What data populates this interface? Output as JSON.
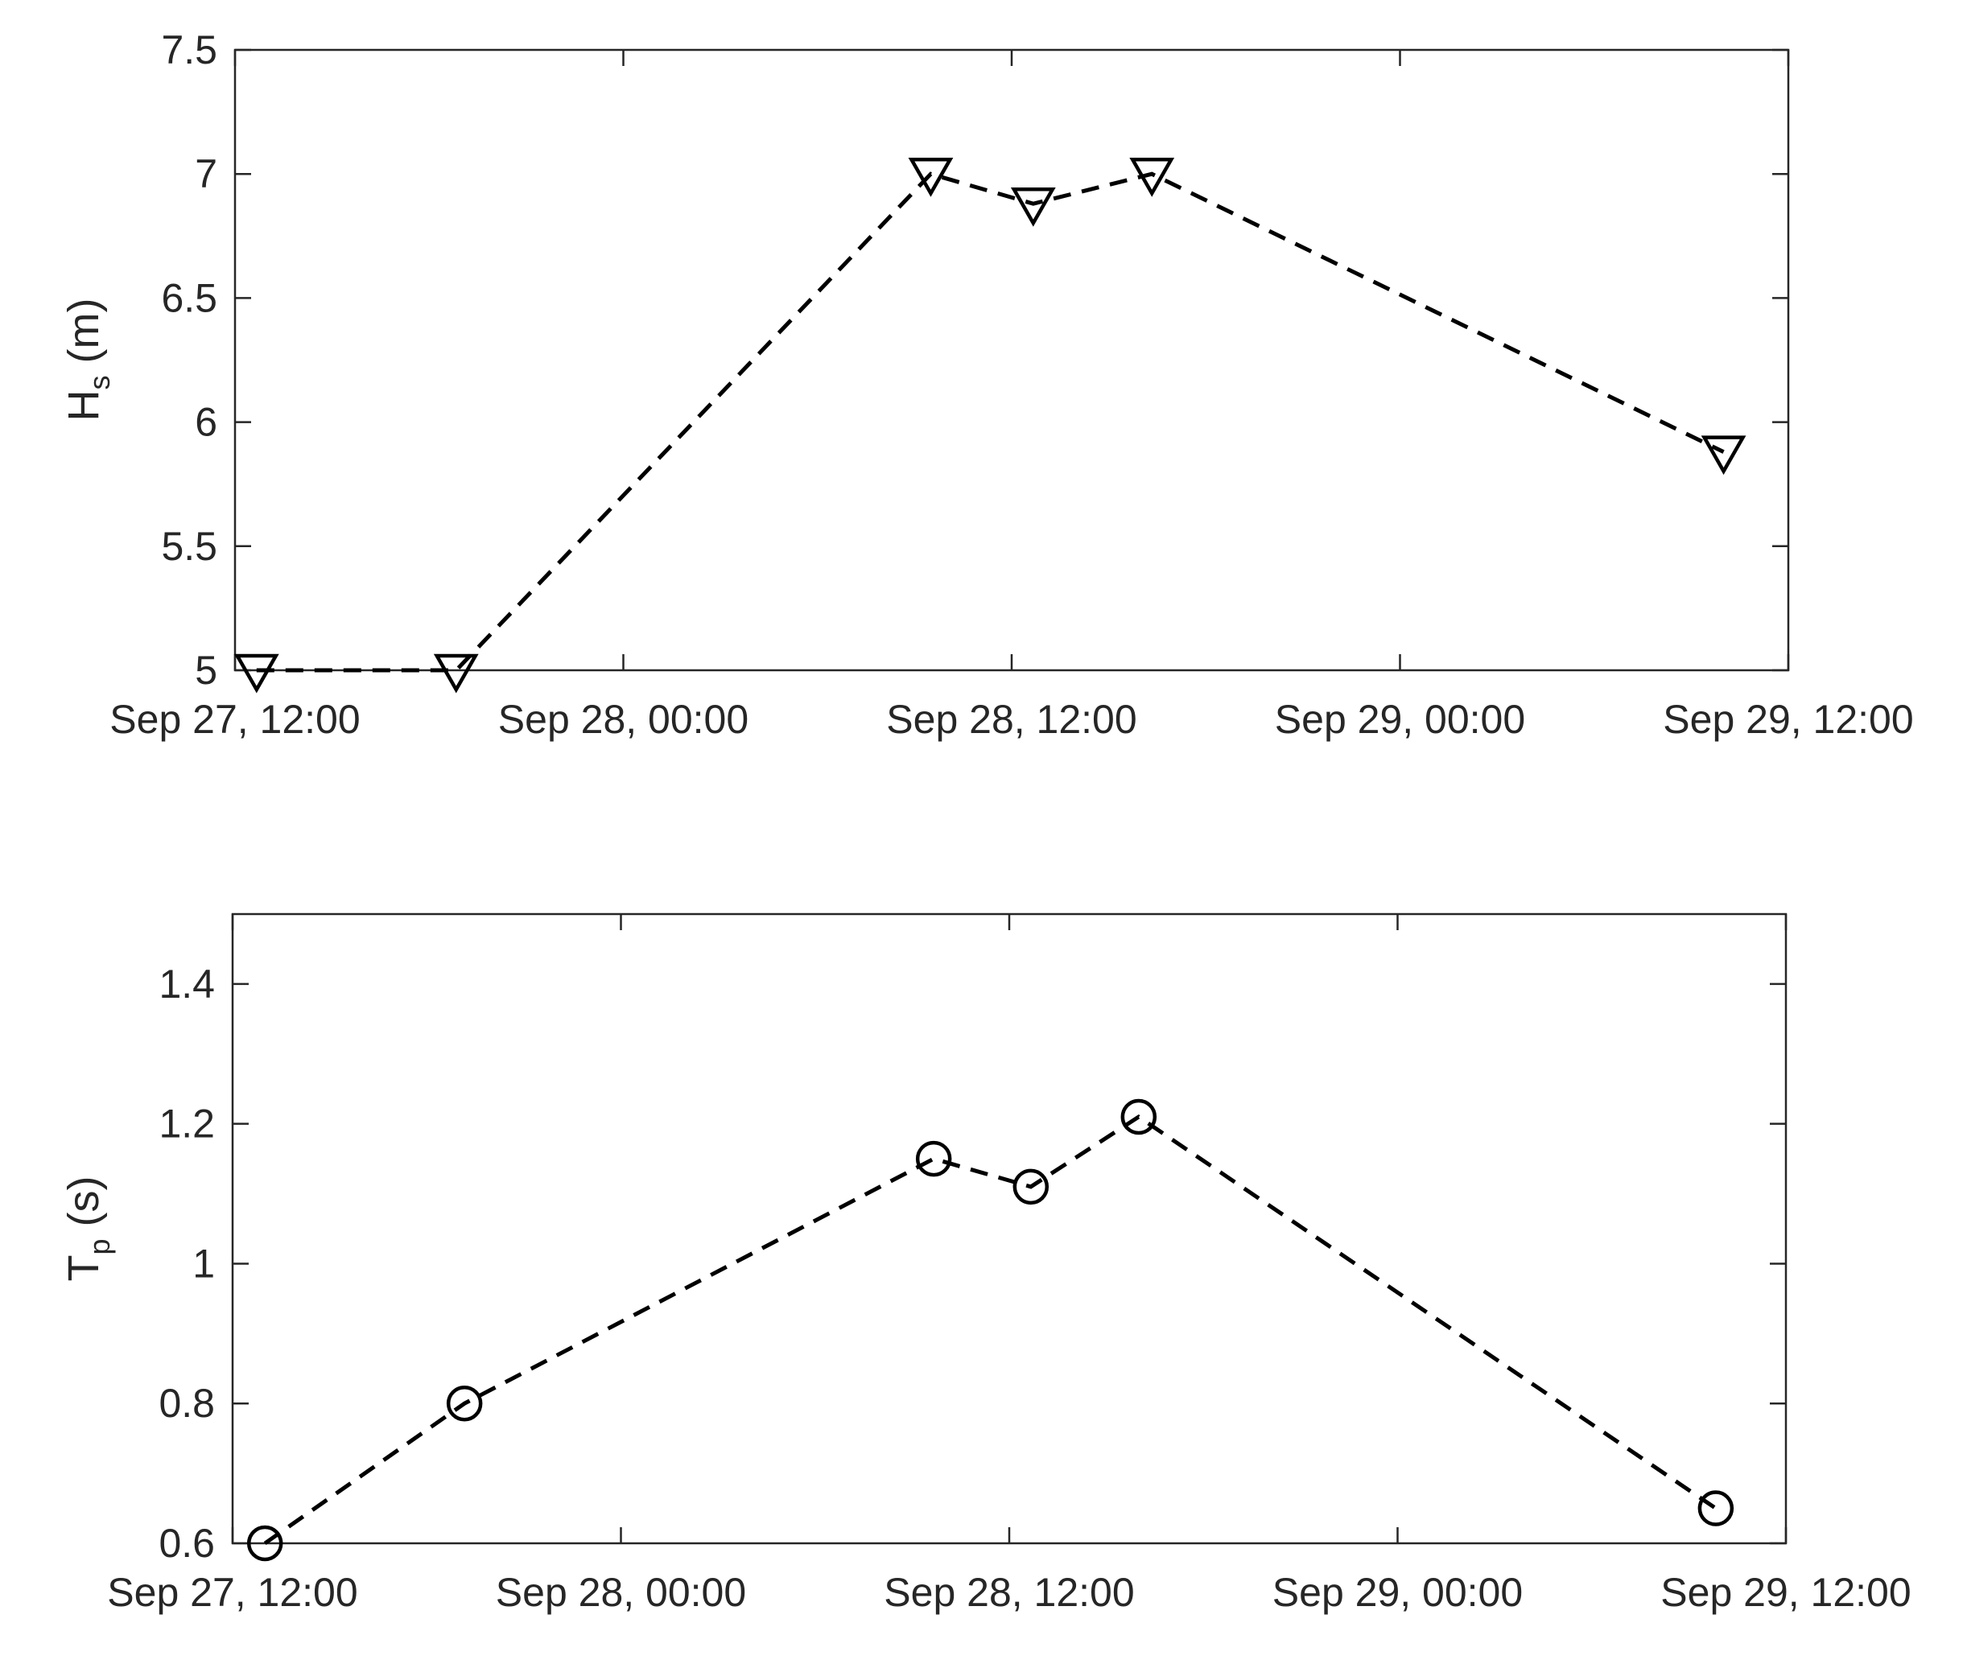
{
  "chart_data": [
    {
      "type": "line",
      "ylabel": {
        "main": "H",
        "sub": "s",
        "unit": " (m)"
      },
      "marker": "triangle-down",
      "x_ticks": [
        "Sep 27, 12:00",
        "Sep 28, 00:00",
        "Sep 28, 12:00",
        "Sep 29, 00:00",
        "Sep 29, 12:00"
      ],
      "xlim": [
        "2023-09-27T12:00",
        "2023-09-29T12:00"
      ],
      "y_ticks": [
        "5",
        "5.5",
        "6",
        "6.5",
        "7",
        "7.5"
      ],
      "ylim": [
        5,
        7.5
      ],
      "series": [
        {
          "x": [
            "2023-09-27T12:40",
            "2023-09-27T18:50",
            "2023-09-28T09:30",
            "2023-09-28T12:40",
            "2023-09-28T16:20",
            "2023-09-29T10:00"
          ],
          "y": [
            5.0,
            5.0,
            7.0,
            6.88,
            7.0,
            5.88
          ]
        }
      ]
    },
    {
      "type": "line",
      "ylabel": {
        "main": "T",
        "sub": "p",
        "unit": " (s)"
      },
      "marker": "circle",
      "x_ticks": [
        "Sep 27, 12:00",
        "Sep 28, 00:00",
        "Sep 28, 12:00",
        "Sep 29, 00:00",
        "Sep 29, 12:00"
      ],
      "xlim": [
        "2023-09-27T12:00",
        "2023-09-29T12:00"
      ],
      "y_ticks": [
        "0.6",
        "0.8",
        "1",
        "1.2",
        "1.4"
      ],
      "ylim": [
        0.6,
        1.5
      ],
      "series": [
        {
          "x": [
            "2023-09-27T13:00",
            "2023-09-27T19:10",
            "2023-09-28T09:40",
            "2023-09-28T12:40",
            "2023-09-28T16:00",
            "2023-09-29T09:50"
          ],
          "y": [
            0.6,
            0.8,
            1.15,
            1.11,
            1.21,
            0.65
          ]
        }
      ]
    }
  ]
}
